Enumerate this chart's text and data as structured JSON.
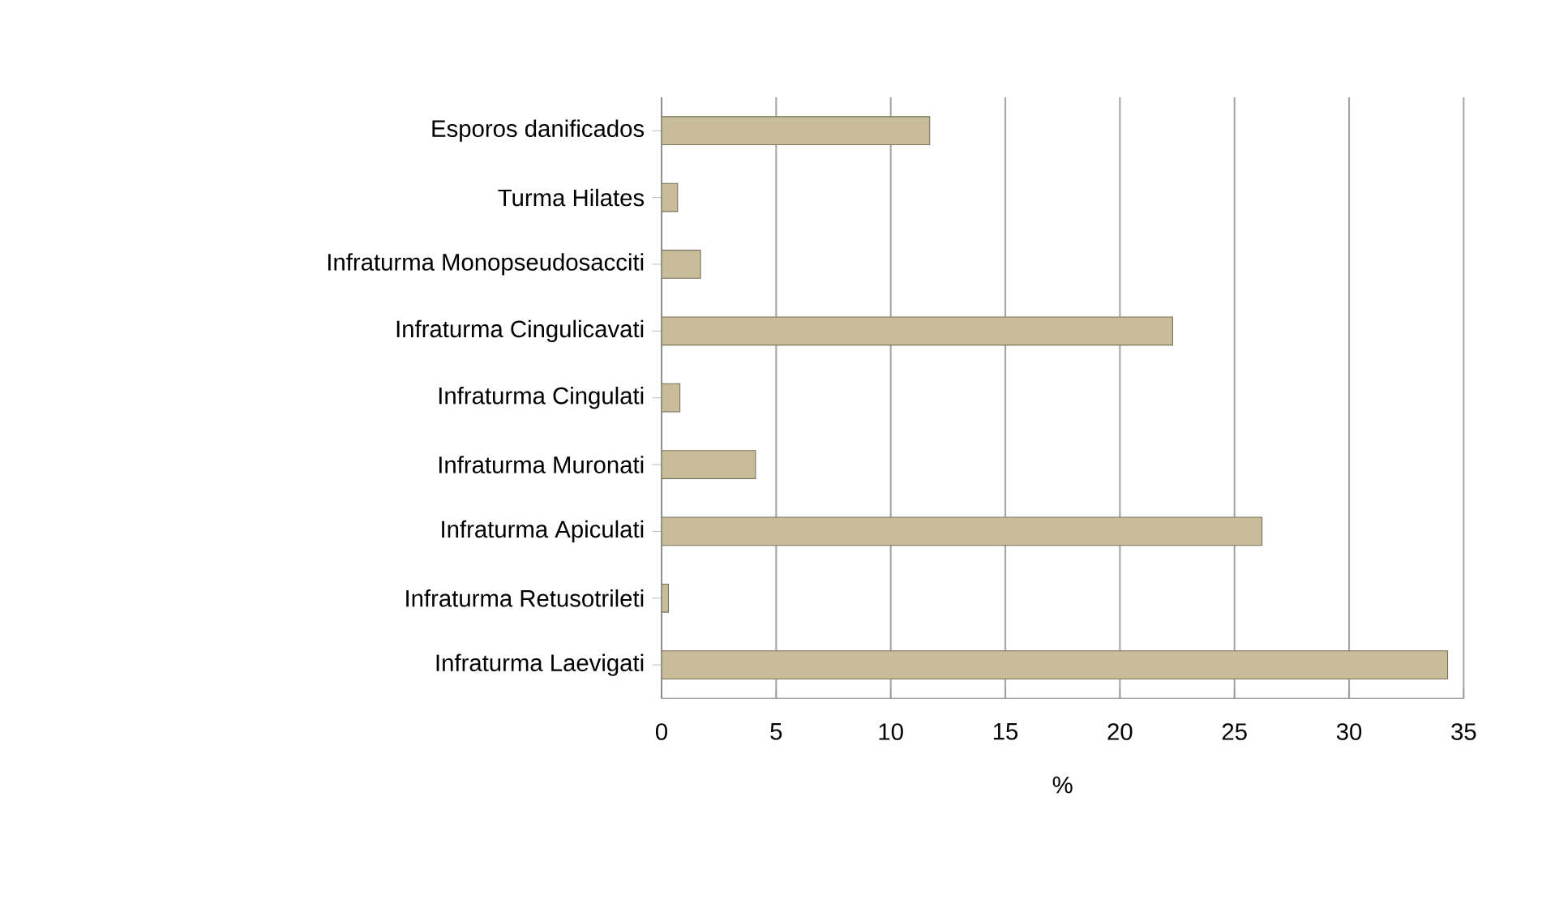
{
  "chart_data": {
    "type": "bar",
    "orientation": "horizontal",
    "xlabel": "%",
    "categories": [
      "Esporos danificados",
      "Turma Hilates",
      "Infraturma Monopseudosacciti",
      "Infraturma Cingulicavati",
      "Infraturma Cingulati",
      "Infraturma Muronati",
      "Infraturma Apiculati",
      "Infraturma Retusotrileti",
      "Infraturma Laevigati"
    ],
    "values": [
      11.7,
      0.7,
      1.7,
      22.3,
      0.8,
      4.1,
      26.2,
      0.3,
      34.3
    ],
    "color": "#c8bd98",
    "xlim": [
      0,
      35
    ],
    "xticks": [
      0,
      5,
      10,
      15,
      20,
      25,
      30,
      35
    ],
    "grid": "x"
  }
}
